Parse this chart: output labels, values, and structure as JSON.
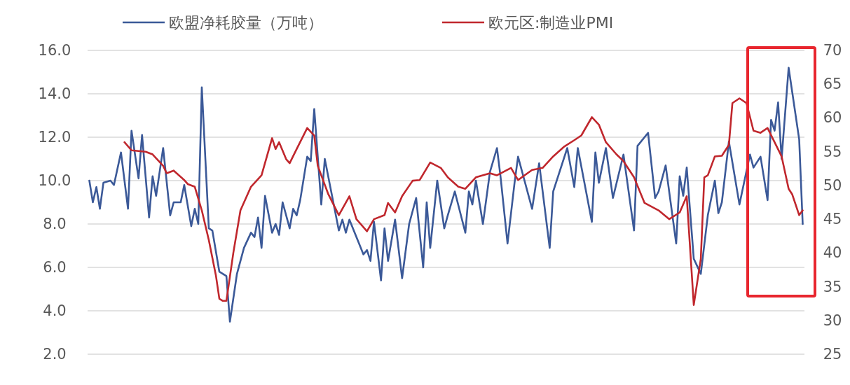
{
  "chart_data": {
    "type": "line",
    "categories": [
      null,
      null,
      null,
      null,
      null,
      null,
      null,
      null,
      null,
      null,
      null,
      null,
      null,
      null,
      null,
      null,
      null,
      null,
      null,
      null,
      null,
      null,
      null,
      null,
      null,
      null,
      null,
      null,
      null,
      null,
      null,
      null,
      null,
      null,
      null,
      null,
      null,
      null,
      null,
      null,
      null,
      null,
      null,
      null,
      null,
      null,
      null,
      null,
      null,
      null,
      null,
      null,
      null,
      null,
      null,
      null,
      null,
      null,
      null,
      null,
      null,
      null,
      null,
      null,
      null,
      null,
      null,
      null,
      null,
      null,
      null,
      null,
      null,
      null,
      null,
      null,
      null,
      null,
      null,
      null,
      null,
      null,
      null,
      null,
      null,
      null,
      null,
      null,
      null,
      null,
      null,
      null,
      null,
      null,
      null,
      null,
      null,
      null,
      null,
      null,
      null,
      null,
      null,
      null,
      null,
      null,
      null,
      null,
      null,
      null,
      null,
      null,
      null,
      null,
      null,
      null,
      null,
      null,
      null,
      null,
      null,
      null,
      null,
      null,
      null,
      null,
      null,
      null,
      null,
      null,
      null,
      null,
      null,
      null,
      null,
      null,
      null,
      null,
      null,
      null,
      null,
      null,
      null,
      null,
      null,
      null,
      null,
      null,
      null,
      null,
      null,
      null,
      null,
      null,
      null,
      null,
      null,
      null,
      null,
      null,
      null,
      null,
      null,
      null,
      null,
      null,
      null,
      null,
      null,
      null,
      null,
      null,
      null,
      null,
      null,
      null,
      null,
      null,
      null,
      null,
      null,
      null,
      null,
      null,
      null,
      null,
      null,
      null,
      null,
      null,
      null,
      null,
      null,
      null,
      null,
      null,
      null,
      null,
      null,
      null,
      null,
      null,
      null,
      null
    ],
    "series": [
      {
        "name": "欧盟净耗胶量（万吨）",
        "color": "#3b5998",
        "values": [
          10.0,
          9.0,
          9.7,
          8.7,
          9.9,
          null,
          10.0,
          9.8,
          null,
          11.3,
          null,
          8.7,
          12.3,
          null,
          10.1,
          12.1,
          null,
          8.3,
          10.2,
          9.3,
          null,
          11.5,
          null,
          8.4,
          9.0,
          null,
          9.0,
          9.8,
          null,
          7.9,
          8.7,
          8.0,
          14.3,
          null,
          7.8,
          7.7,
          null,
          5.8,
          null,
          5.6,
          3.5,
          null,
          5.7,
          null,
          6.9,
          null,
          7.6,
          7.4,
          8.3,
          6.9,
          9.3,
          null,
          7.6,
          8.0,
          7.5,
          9.0,
          null,
          7.8,
          8.7,
          8.4,
          9.1,
          null,
          11.1,
          10.9,
          13.3,
          null,
          8.9,
          11.0,
          null,
          null,
          null,
          7.7,
          8.2,
          7.6,
          8.2,
          null,
          null,
          null,
          6.6,
          6.8,
          6.3,
          8.1,
          null,
          5.4,
          7.8,
          6.3,
          null,
          8.2,
          null,
          5.5,
          null,
          8.0,
          null,
          9.2,
          null,
          6.0,
          9.0,
          6.9,
          null,
          10.0,
          null,
          7.8,
          8.4,
          null,
          9.5,
          null,
          null,
          7.6,
          9.5,
          8.9,
          10.0,
          null,
          8.0,
          null,
          10.4,
          null,
          11.5,
          10.2,
          null,
          7.1,
          null,
          9.9,
          11.1,
          null,
          null,
          null,
          8.7,
          null,
          10.8,
          null,
          null,
          6.9,
          9.5,
          null,
          null,
          null,
          11.5,
          null,
          9.7,
          11.5,
          null,
          null,
          null,
          8.1,
          11.3,
          9.9,
          null,
          11.5,
          null,
          9.2,
          null,
          null,
          11.2,
          null,
          null,
          7.7,
          11.6,
          null,
          null,
          12.2,
          null,
          9.2,
          9.5,
          null,
          10.7,
          null,
          null,
          7.1,
          10.2,
          9.3,
          10.6,
          null,
          6.4,
          null,
          5.7,
          null,
          8.4,
          null,
          10.0,
          8.5,
          9.0,
          null,
          11.8,
          null,
          null,
          8.9,
          null,
          null,
          11.2,
          10.6,
          null,
          11.1,
          null,
          9.1,
          12.8,
          12.3,
          13.6,
          11.0,
          null,
          15.2,
          null,
          null,
          11.9,
          8.0
        ]
      },
      {
        "name": "欧元区:制造业PMI",
        "color": "#c0272d",
        "axis": "y2",
        "values": [
          null,
          null,
          null,
          null,
          null,
          null,
          null,
          null,
          null,
          null,
          56.4,
          null,
          55.2,
          null,
          null,
          null,
          55.0,
          null,
          54.6,
          null,
          null,
          52.9,
          51.8,
          null,
          52.2,
          null,
          null,
          50.8,
          50.2,
          null,
          49.8,
          null,
          46.3,
          null,
          41.9,
          null,
          36.7,
          33.2,
          32.9,
          32.9,
          null,
          40.1,
          null,
          46.3,
          null,
          null,
          49.8,
          null,
          null,
          51.5,
          null,
          null,
          57.0,
          55.4,
          56.4,
          null,
          53.9,
          53.3,
          null,
          55.4,
          null,
          null,
          58.5,
          null,
          57.4,
          52.9,
          null,
          null,
          48.7,
          null,
          null,
          45.6,
          null,
          null,
          48.4,
          null,
          45.0,
          null,
          null,
          43.2,
          null,
          45.0,
          null,
          null,
          45.6,
          47.4,
          null,
          46.0,
          null,
          48.4,
          null,
          null,
          50.7,
          null,
          50.8,
          null,
          null,
          53.4,
          null,
          null,
          52.6,
          null,
          51.2,
          null,
          null,
          49.8,
          null,
          49.5,
          null,
          null,
          51.2,
          null,
          null,
          null,
          51.8,
          null,
          51.5,
          null,
          null,
          null,
          52.6,
          null,
          50.8,
          null,
          null,
          null,
          52.3,
          null,
          null,
          52.6,
          null,
          null,
          54.3,
          null,
          null,
          55.7,
          null,
          null,
          56.7,
          null,
          57.4,
          null,
          null,
          60.1,
          null,
          59.0,
          null,
          56.4,
          null,
          null,
          54.6,
          null,
          53.6,
          null,
          null,
          51.2,
          null,
          null,
          47.4,
          null,
          null,
          null,
          46.3,
          null,
          null,
          45.0,
          null,
          null,
          46.0,
          null,
          48.4,
          null,
          32.3,
          null,
          39.1,
          51.2,
          51.5,
          null,
          54.3,
          null,
          54.4,
          null,
          56.0,
          62.2,
          null,
          62.9,
          null,
          62.2,
          null,
          58.1,
          null,
          57.8,
          null,
          58.5,
          null,
          null,
          null,
          54.3,
          null,
          49.5,
          48.7,
          null,
          45.6,
          46.3
        ]
      }
    ],
    "ylim": [
      2,
      16
    ],
    "yticks": [
      {
        "value": 2,
        "label": "2.0"
      },
      {
        "value": 4,
        "label": "4.0"
      },
      {
        "value": 6,
        "label": "6.0"
      },
      {
        "value": 8,
        "label": "8.0"
      },
      {
        "value": 10,
        "label": "10.0"
      },
      {
        "value": 12,
        "label": "12.0"
      },
      {
        "value": 14,
        "label": "14.0"
      },
      {
        "value": 16,
        "label": "16.0"
      }
    ],
    "y2lim": [
      25,
      70
    ],
    "y2ticks": [
      25,
      30,
      35,
      40,
      45,
      50,
      55,
      60,
      65,
      70
    ],
    "grid": "y",
    "legend": "top",
    "tick_labels": "y",
    "line_style": "solid"
  }
}
